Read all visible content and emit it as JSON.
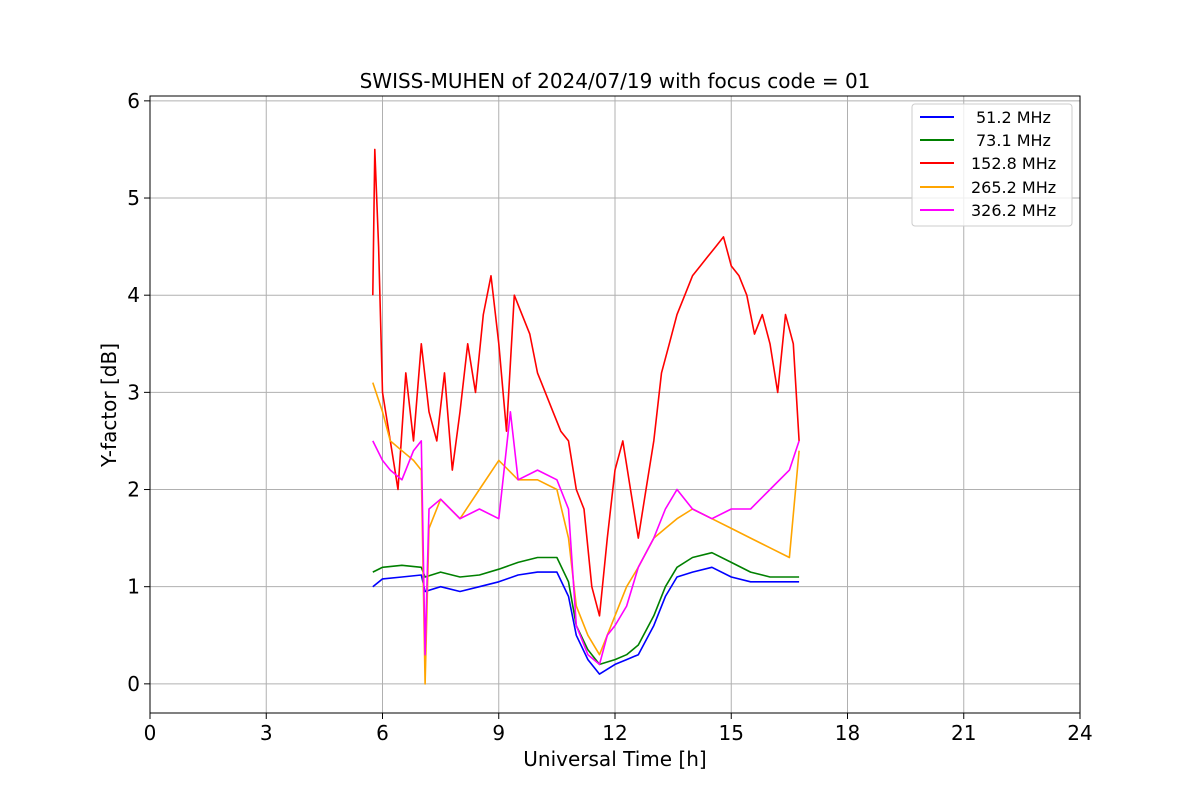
{
  "chart_data": {
    "type": "line",
    "title": "SWISS-MUHEN of 2024/07/19 with focus code = 01",
    "xlabel": "Universal Time [h]",
    "ylabel": "Y-factor [dB]",
    "xlim": [
      0,
      24
    ],
    "ylim": [
      -0.3,
      6.05
    ],
    "xticks": [
      0,
      3,
      6,
      9,
      12,
      15,
      18,
      21,
      24
    ],
    "yticks": [
      0,
      1,
      2,
      3,
      4,
      5,
      6
    ],
    "grid": true,
    "legend_position": "top-right",
    "series": [
      {
        "name": "51.2 MHz",
        "color": "#0000ff",
        "x": [
          5.75,
          6.0,
          6.5,
          7.0,
          7.1,
          7.5,
          8.0,
          8.5,
          9.0,
          9.5,
          10.0,
          10.5,
          10.8,
          11.0,
          11.3,
          11.6,
          12.0,
          12.3,
          12.6,
          13.0,
          13.3,
          13.6,
          14.0,
          14.5,
          15.0,
          15.5,
          16.0,
          16.5,
          16.75
        ],
        "y": [
          1.0,
          1.08,
          1.1,
          1.12,
          0.95,
          1.0,
          0.95,
          1.0,
          1.05,
          1.12,
          1.15,
          1.15,
          0.9,
          0.5,
          0.25,
          0.1,
          0.2,
          0.25,
          0.3,
          0.6,
          0.9,
          1.1,
          1.15,
          1.2,
          1.1,
          1.05,
          1.05,
          1.05,
          1.05
        ]
      },
      {
        "name": "73.1 MHz",
        "color": "#008000",
        "x": [
          5.75,
          6.0,
          6.5,
          7.0,
          7.1,
          7.5,
          8.0,
          8.5,
          9.0,
          9.5,
          10.0,
          10.5,
          10.8,
          11.0,
          11.3,
          11.6,
          12.0,
          12.3,
          12.6,
          13.0,
          13.3,
          13.6,
          14.0,
          14.5,
          15.0,
          15.5,
          16.0,
          16.5,
          16.75
        ],
        "y": [
          1.15,
          1.2,
          1.22,
          1.2,
          1.1,
          1.15,
          1.1,
          1.12,
          1.18,
          1.25,
          1.3,
          1.3,
          1.05,
          0.6,
          0.35,
          0.2,
          0.25,
          0.3,
          0.4,
          0.7,
          1.0,
          1.2,
          1.3,
          1.35,
          1.25,
          1.15,
          1.1,
          1.1,
          1.1
        ]
      },
      {
        "name": "152.8 MHz",
        "color": "#ff0000",
        "x": [
          5.75,
          5.8,
          5.9,
          6.0,
          6.2,
          6.4,
          6.6,
          6.8,
          7.0,
          7.2,
          7.4,
          7.6,
          7.8,
          8.0,
          8.2,
          8.4,
          8.6,
          8.8,
          9.0,
          9.2,
          9.4,
          9.6,
          9.8,
          10.0,
          10.2,
          10.4,
          10.6,
          10.8,
          11.0,
          11.2,
          11.4,
          11.6,
          11.8,
          12.0,
          12.2,
          12.4,
          12.6,
          12.8,
          13.0,
          13.2,
          13.4,
          13.6,
          13.8,
          14.0,
          14.2,
          14.4,
          14.6,
          14.8,
          15.0,
          15.2,
          15.4,
          15.6,
          15.8,
          16.0,
          16.2,
          16.4,
          16.6,
          16.75
        ],
        "y": [
          4.0,
          5.5,
          4.5,
          3.0,
          2.5,
          2.0,
          3.2,
          2.5,
          3.5,
          2.8,
          2.5,
          3.2,
          2.2,
          2.8,
          3.5,
          3.0,
          3.8,
          4.2,
          3.5,
          2.6,
          4.0,
          3.8,
          3.6,
          3.2,
          3.0,
          2.8,
          2.6,
          2.5,
          2.0,
          1.8,
          1.0,
          0.7,
          1.5,
          2.2,
          2.5,
          2.0,
          1.5,
          2.0,
          2.5,
          3.2,
          3.5,
          3.8,
          4.0,
          4.2,
          4.3,
          4.4,
          4.5,
          4.6,
          4.3,
          4.2,
          4.0,
          3.6,
          3.8,
          3.5,
          3.0,
          3.8,
          3.5,
          2.5
        ]
      },
      {
        "name": "265.2 MHz",
        "color": "#ffa500",
        "x": [
          5.75,
          6.0,
          6.2,
          6.5,
          6.8,
          7.0,
          7.1,
          7.2,
          7.5,
          8.0,
          8.5,
          9.0,
          9.5,
          10.0,
          10.5,
          10.8,
          11.0,
          11.3,
          11.6,
          12.0,
          12.3,
          12.6,
          13.0,
          13.3,
          13.6,
          14.0,
          14.5,
          15.0,
          15.5,
          16.0,
          16.5,
          16.75
        ],
        "y": [
          3.1,
          2.8,
          2.5,
          2.4,
          2.3,
          2.2,
          0.0,
          1.6,
          1.9,
          1.7,
          2.0,
          2.3,
          2.1,
          2.1,
          2.0,
          1.5,
          0.8,
          0.5,
          0.3,
          0.7,
          1.0,
          1.2,
          1.5,
          1.6,
          1.7,
          1.8,
          1.7,
          1.6,
          1.5,
          1.4,
          1.3,
          2.4
        ]
      },
      {
        "name": "326.2 MHz",
        "color": "#ff00ff",
        "x": [
          5.75,
          6.0,
          6.2,
          6.5,
          6.8,
          7.0,
          7.1,
          7.2,
          7.5,
          8.0,
          8.5,
          9.0,
          9.3,
          9.5,
          10.0,
          10.5,
          10.8,
          11.0,
          11.3,
          11.6,
          11.8,
          12.0,
          12.3,
          12.6,
          13.0,
          13.3,
          13.6,
          14.0,
          14.5,
          15.0,
          15.5,
          16.0,
          16.5,
          16.75
        ],
        "y": [
          2.5,
          2.3,
          2.2,
          2.1,
          2.4,
          2.5,
          0.3,
          1.8,
          1.9,
          1.7,
          1.8,
          1.7,
          2.8,
          2.1,
          2.2,
          2.1,
          1.8,
          0.6,
          0.3,
          0.2,
          0.5,
          0.6,
          0.8,
          1.2,
          1.5,
          1.8,
          2.0,
          1.8,
          1.7,
          1.8,
          1.8,
          2.0,
          2.2,
          2.5
        ]
      }
    ]
  }
}
